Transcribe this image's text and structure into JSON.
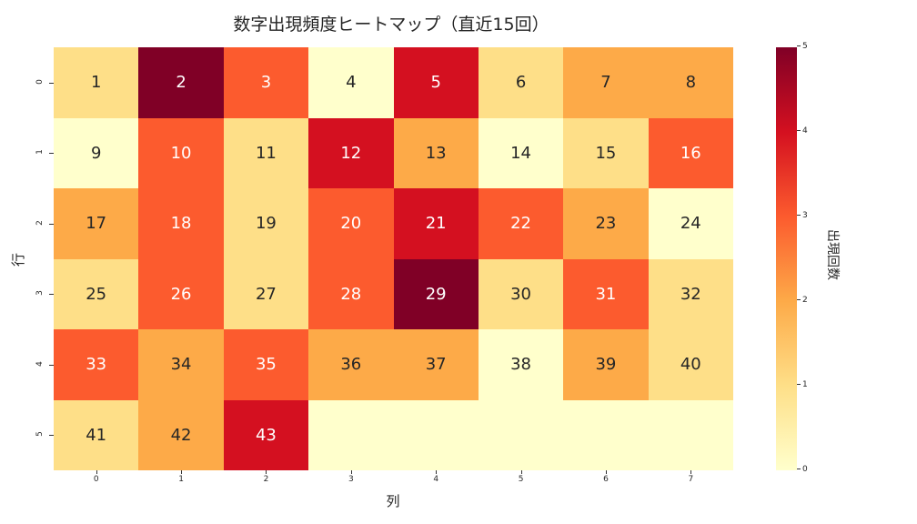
{
  "chart_data": {
    "type": "heatmap",
    "title": "数字出現頻度ヒートマップ（直近15回）",
    "xlabel": "列",
    "ylabel": "行",
    "colorbar_label": "出現回数",
    "colormap": "YlOrRd",
    "vmin": 0,
    "vmax": 5,
    "x_ticks": [
      "0",
      "1",
      "2",
      "3",
      "4",
      "5",
      "6",
      "7"
    ],
    "y_ticks": [
      "0",
      "1",
      "2",
      "3",
      "4",
      "5"
    ],
    "colorbar_ticks": [
      "0",
      "1",
      "2",
      "3",
      "4",
      "5"
    ],
    "annotations": [
      [
        "1",
        "2",
        "3",
        "4",
        "5",
        "6",
        "7",
        "8"
      ],
      [
        "9",
        "10",
        "11",
        "12",
        "13",
        "14",
        "15",
        "16"
      ],
      [
        "17",
        "18",
        "19",
        "20",
        "21",
        "22",
        "23",
        "24"
      ],
      [
        "25",
        "26",
        "27",
        "28",
        "29",
        "30",
        "31",
        "32"
      ],
      [
        "33",
        "34",
        "35",
        "36",
        "37",
        "38",
        "39",
        "40"
      ],
      [
        "41",
        "42",
        "43",
        "",
        "",
        "",
        "",
        ""
      ]
    ],
    "values": [
      [
        1,
        5,
        3,
        0,
        4,
        1,
        2,
        2
      ],
      [
        0,
        3,
        1,
        4,
        2,
        0,
        1,
        3
      ],
      [
        2,
        3,
        1,
        3,
        4,
        3,
        2,
        0
      ],
      [
        1,
        3,
        1,
        3,
        5,
        1,
        3,
        1
      ],
      [
        3,
        2,
        3,
        2,
        2,
        0,
        2,
        1
      ],
      [
        1,
        2,
        4,
        0,
        0,
        0,
        0,
        0
      ]
    ],
    "color_scale": [
      "#ffffcc",
      "#fedf88",
      "#fdaa48",
      "#fc5b2e",
      "#d41020",
      "#800026"
    ]
  }
}
